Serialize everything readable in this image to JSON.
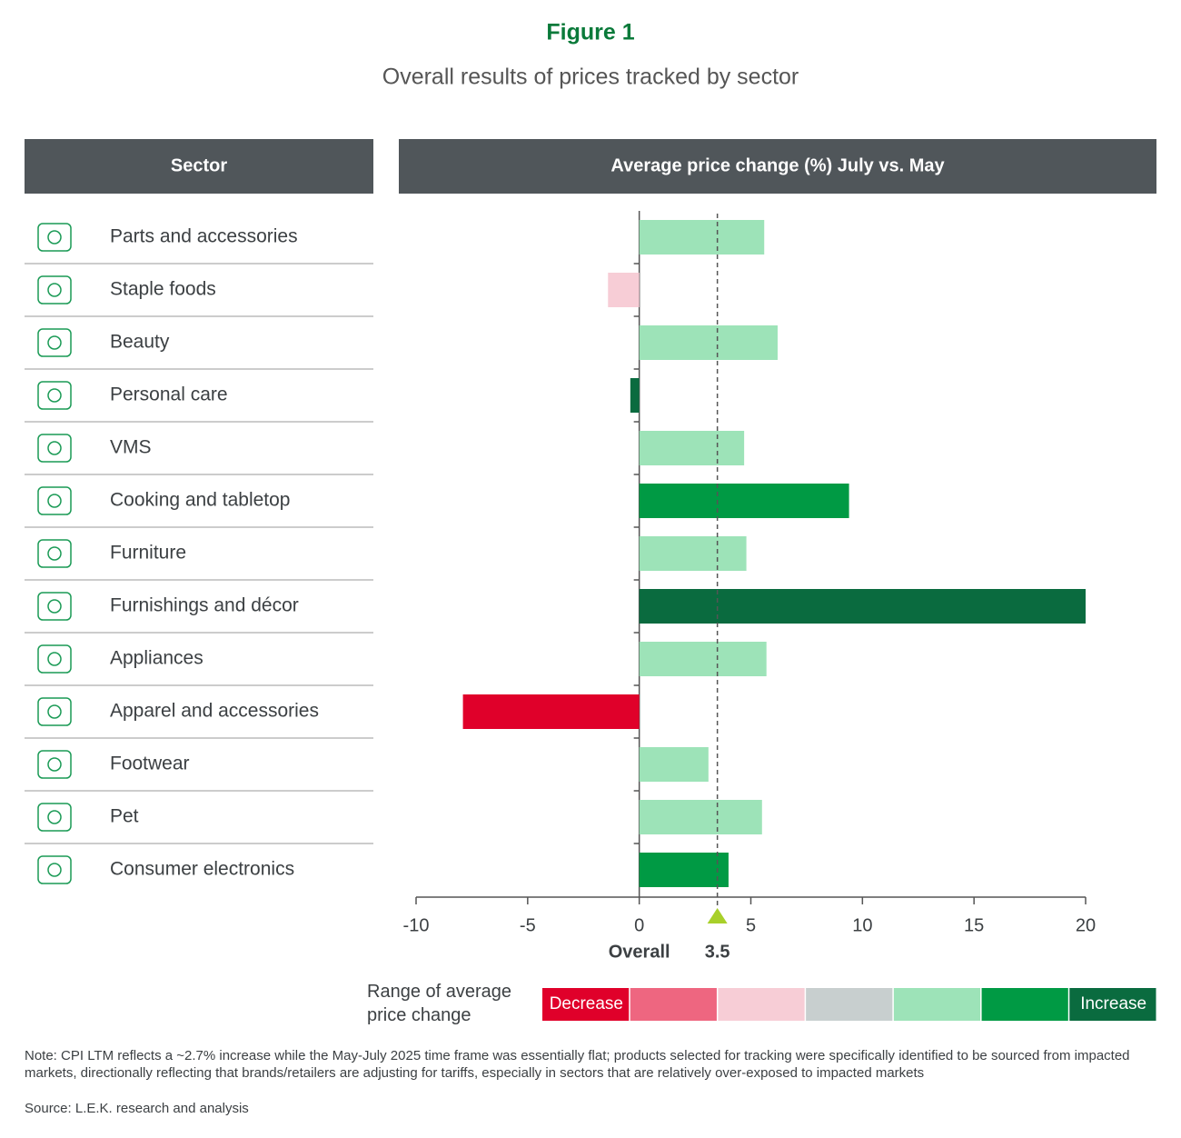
{
  "chart_data": {
    "type": "bar",
    "orientation": "horizontal",
    "title": "Figure 1",
    "subtitle": "Overall results of prices tracked by sector",
    "table_headers": [
      "Sector",
      "Average price change (%) July vs. May"
    ],
    "categories": [
      "Parts and accessories",
      "Staple foods",
      "Beauty",
      "Personal care",
      "VMS",
      "Cooking and tabletop",
      "Furniture",
      "Furnishings and décor",
      "Appliances",
      "Apparel and accessories",
      "Footwear",
      "Pet",
      "Consumer electronics"
    ],
    "values": [
      5.6,
      -1.4,
      6.2,
      -0.4,
      4.7,
      9.4,
      4.8,
      20,
      5.7,
      -7.9,
      3.1,
      5.5,
      4.0
    ],
    "colors": [
      "#9de3b8",
      "#f7cdd6",
      "#9de3b8",
      "#0a6b3f",
      "#9de3b8",
      "#009a44",
      "#9de3b8",
      "#0a6b3f",
      "#9de3b8",
      "#e0002a",
      "#9de3b8",
      "#9de3b8",
      "#009a44"
    ],
    "xlim": [
      -10,
      20
    ],
    "xticks": [
      -10,
      -5,
      0,
      5,
      10,
      15,
      20
    ],
    "reference": {
      "label": "Overall",
      "value": 3.5,
      "color": "#a8d02a"
    },
    "legend": {
      "title": "Range of average price change",
      "low_label": "Decrease",
      "high_label": "Increase",
      "colors": [
        "#e0002a",
        "#ee6680",
        "#f7cdd6",
        "#c8cfcf",
        "#9de3b8",
        "#009a44",
        "#0a6b3f"
      ]
    },
    "note": "Note: CPI LTM reflects a ~2.7% increase while the May-July 2025 time frame was essentially flat; products selected for tracking were specifically identified to be sourced from impacted markets, directionally reflecting that brands/retailers are adjusting for tariffs, especially in sectors that are relatively over-exposed to impacted markets",
    "source": "Source: L.E.K. research and analysis"
  }
}
